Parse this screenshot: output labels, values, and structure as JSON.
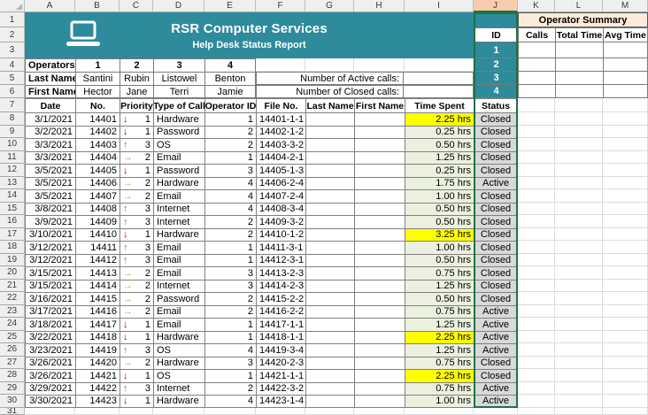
{
  "colors": {
    "teal": "#2E8B9C",
    "selection_green": "#1F7244",
    "selected_column_header": "#F8CBAD",
    "time_fill": "#EBF1DE",
    "time_highlight_fill": "#FFFF00",
    "status_fill": "#D9D9D9",
    "summary_title_fill": "#FDEADA"
  },
  "grid": {
    "column_letters": [
      "A",
      "B",
      "C",
      "D",
      "E",
      "F",
      "G",
      "H",
      "I",
      "J",
      "K",
      "L",
      "M"
    ],
    "selected_column": "J",
    "row_count": 31
  },
  "banner": {
    "title": "RSR Computer Services",
    "subtitle": "Help Desk Status Report",
    "icon": "laptop-icon"
  },
  "operators_block": {
    "row_label_ids": "Operators",
    "row_label_last": "Last Name",
    "row_label_first": "First Name",
    "ids": [
      "1",
      "2",
      "3",
      "4"
    ],
    "last_names": [
      "Santini",
      "Rubin",
      "Listowel",
      "Benton"
    ],
    "first_names": [
      "Hector",
      "Jane",
      "Terri",
      "Jamie"
    ]
  },
  "counters": {
    "active_label": "Number of Active calls:",
    "active_value": "",
    "closed_label": "Number of Closed calls:",
    "closed_value": ""
  },
  "operator_summary": {
    "title": "Operator Summary",
    "headers": [
      "ID",
      "Calls",
      "Total Time",
      "Avg Time"
    ],
    "ids": [
      "1",
      "2",
      "3",
      "4"
    ]
  },
  "help_desk_table": {
    "headers": [
      "Date",
      "No.",
      "Priority",
      "Type of Call",
      "Operator ID",
      "File No.",
      "Last Name",
      "First Name",
      "Time Spent",
      "Status"
    ],
    "priority_icons": {
      "1": "down-arrow-icon",
      "2": "right-arrow-icon",
      "3": "up-arrow-icon"
    },
    "rows": [
      {
        "date": "3/1/2021",
        "no": "14401",
        "priority": "1",
        "type": "Hardware",
        "operator_id": "1",
        "file_no": "14401-1-1",
        "last_name": "",
        "first_name": "",
        "time_spent": "2.25 hrs",
        "highlight": true,
        "status": "Closed"
      },
      {
        "date": "3/2/2021",
        "no": "14402",
        "priority": "1",
        "type": "Password",
        "operator_id": "2",
        "file_no": "14402-1-2",
        "last_name": "",
        "first_name": "",
        "time_spent": "0.25 hrs",
        "highlight": false,
        "status": "Closed"
      },
      {
        "date": "3/3/2021",
        "no": "14403",
        "priority": "3",
        "type": "OS",
        "operator_id": "2",
        "file_no": "14403-3-2",
        "last_name": "",
        "first_name": "",
        "time_spent": "0.50 hrs",
        "highlight": false,
        "status": "Closed"
      },
      {
        "date": "3/3/2021",
        "no": "14404",
        "priority": "2",
        "type": "Email",
        "operator_id": "1",
        "file_no": "14404-2-1",
        "last_name": "",
        "first_name": "",
        "time_spent": "1.25 hrs",
        "highlight": false,
        "status": "Closed"
      },
      {
        "date": "3/5/2021",
        "no": "14405",
        "priority": "1",
        "type": "Password",
        "operator_id": "3",
        "file_no": "14405-1-3",
        "last_name": "",
        "first_name": "",
        "time_spent": "0.25 hrs",
        "highlight": false,
        "status": "Closed"
      },
      {
        "date": "3/5/2021",
        "no": "14406",
        "priority": "2",
        "type": "Hardware",
        "operator_id": "4",
        "file_no": "14406-2-4",
        "last_name": "",
        "first_name": "",
        "time_spent": "1.75 hrs",
        "highlight": false,
        "status": "Active"
      },
      {
        "date": "3/5/2021",
        "no": "14407",
        "priority": "2",
        "type": "Email",
        "operator_id": "4",
        "file_no": "14407-2-4",
        "last_name": "",
        "first_name": "",
        "time_spent": "1.00 hrs",
        "highlight": false,
        "status": "Closed"
      },
      {
        "date": "3/8/2021",
        "no": "14408",
        "priority": "3",
        "type": "Internet",
        "operator_id": "4",
        "file_no": "14408-3-4",
        "last_name": "",
        "first_name": "",
        "time_spent": "0.50 hrs",
        "highlight": false,
        "status": "Closed"
      },
      {
        "date": "3/9/2021",
        "no": "14409",
        "priority": "3",
        "type": "Internet",
        "operator_id": "2",
        "file_no": "14409-3-2",
        "last_name": "",
        "first_name": "",
        "time_spent": "0.50 hrs",
        "highlight": false,
        "status": "Closed"
      },
      {
        "date": "3/10/2021",
        "no": "14410",
        "priority": "1",
        "type": "Hardware",
        "operator_id": "2",
        "file_no": "14410-1-2",
        "last_name": "",
        "first_name": "",
        "time_spent": "3.25 hrs",
        "highlight": true,
        "status": "Closed"
      },
      {
        "date": "3/12/2021",
        "no": "14411",
        "priority": "3",
        "type": "Email",
        "operator_id": "1",
        "file_no": "14411-3-1",
        "last_name": "",
        "first_name": "",
        "time_spent": "1.00 hrs",
        "highlight": false,
        "status": "Closed"
      },
      {
        "date": "3/12/2021",
        "no": "14412",
        "priority": "3",
        "type": "Email",
        "operator_id": "1",
        "file_no": "14412-3-1",
        "last_name": "",
        "first_name": "",
        "time_spent": "0.50 hrs",
        "highlight": false,
        "status": "Closed"
      },
      {
        "date": "3/15/2021",
        "no": "14413",
        "priority": "2",
        "type": "Email",
        "operator_id": "3",
        "file_no": "14413-2-3",
        "last_name": "",
        "first_name": "",
        "time_spent": "0.75 hrs",
        "highlight": false,
        "status": "Closed"
      },
      {
        "date": "3/15/2021",
        "no": "14414",
        "priority": "2",
        "type": "Internet",
        "operator_id": "3",
        "file_no": "14414-2-3",
        "last_name": "",
        "first_name": "",
        "time_spent": "1.25 hrs",
        "highlight": false,
        "status": "Closed"
      },
      {
        "date": "3/16/2021",
        "no": "14415",
        "priority": "2",
        "type": "Password",
        "operator_id": "2",
        "file_no": "14415-2-2",
        "last_name": "",
        "first_name": "",
        "time_spent": "0.50 hrs",
        "highlight": false,
        "status": "Closed"
      },
      {
        "date": "3/17/2021",
        "no": "14416",
        "priority": "2",
        "type": "Email",
        "operator_id": "2",
        "file_no": "14416-2-2",
        "last_name": "",
        "first_name": "",
        "time_spent": "0.75 hrs",
        "highlight": false,
        "status": "Active"
      },
      {
        "date": "3/18/2021",
        "no": "14417",
        "priority": "1",
        "type": "Email",
        "operator_id": "1",
        "file_no": "14417-1-1",
        "last_name": "",
        "first_name": "",
        "time_spent": "1.25 hrs",
        "highlight": false,
        "status": "Active"
      },
      {
        "date": "3/22/2021",
        "no": "14418",
        "priority": "1",
        "type": "Hardware",
        "operator_id": "1",
        "file_no": "14418-1-1",
        "last_name": "",
        "first_name": "",
        "time_spent": "2.25 hrs",
        "highlight": true,
        "status": "Active"
      },
      {
        "date": "3/23/2021",
        "no": "14419",
        "priority": "3",
        "type": "OS",
        "operator_id": "4",
        "file_no": "14419-3-4",
        "last_name": "",
        "first_name": "",
        "time_spent": "1.25 hrs",
        "highlight": false,
        "status": "Active"
      },
      {
        "date": "3/26/2021",
        "no": "14420",
        "priority": "2",
        "type": "Hardware",
        "operator_id": "3",
        "file_no": "14420-2-3",
        "last_name": "",
        "first_name": "",
        "time_spent": "0.75 hrs",
        "highlight": false,
        "status": "Closed"
      },
      {
        "date": "3/26/2021",
        "no": "14421",
        "priority": "1",
        "type": "OS",
        "operator_id": "1",
        "file_no": "14421-1-1",
        "last_name": "",
        "first_name": "",
        "time_spent": "2.25 hrs",
        "highlight": true,
        "status": "Closed"
      },
      {
        "date": "3/29/2021",
        "no": "14422",
        "priority": "3",
        "type": "Internet",
        "operator_id": "2",
        "file_no": "14422-3-2",
        "last_name": "",
        "first_name": "",
        "time_spent": "0.75 hrs",
        "highlight": false,
        "status": "Active"
      },
      {
        "date": "3/30/2021",
        "no": "14423",
        "priority": "1",
        "type": "Hardware",
        "operator_id": "4",
        "file_no": "14423-1-4",
        "last_name": "",
        "first_name": "",
        "time_spent": "1.00 hrs",
        "highlight": false,
        "status": "Active"
      }
    ]
  }
}
